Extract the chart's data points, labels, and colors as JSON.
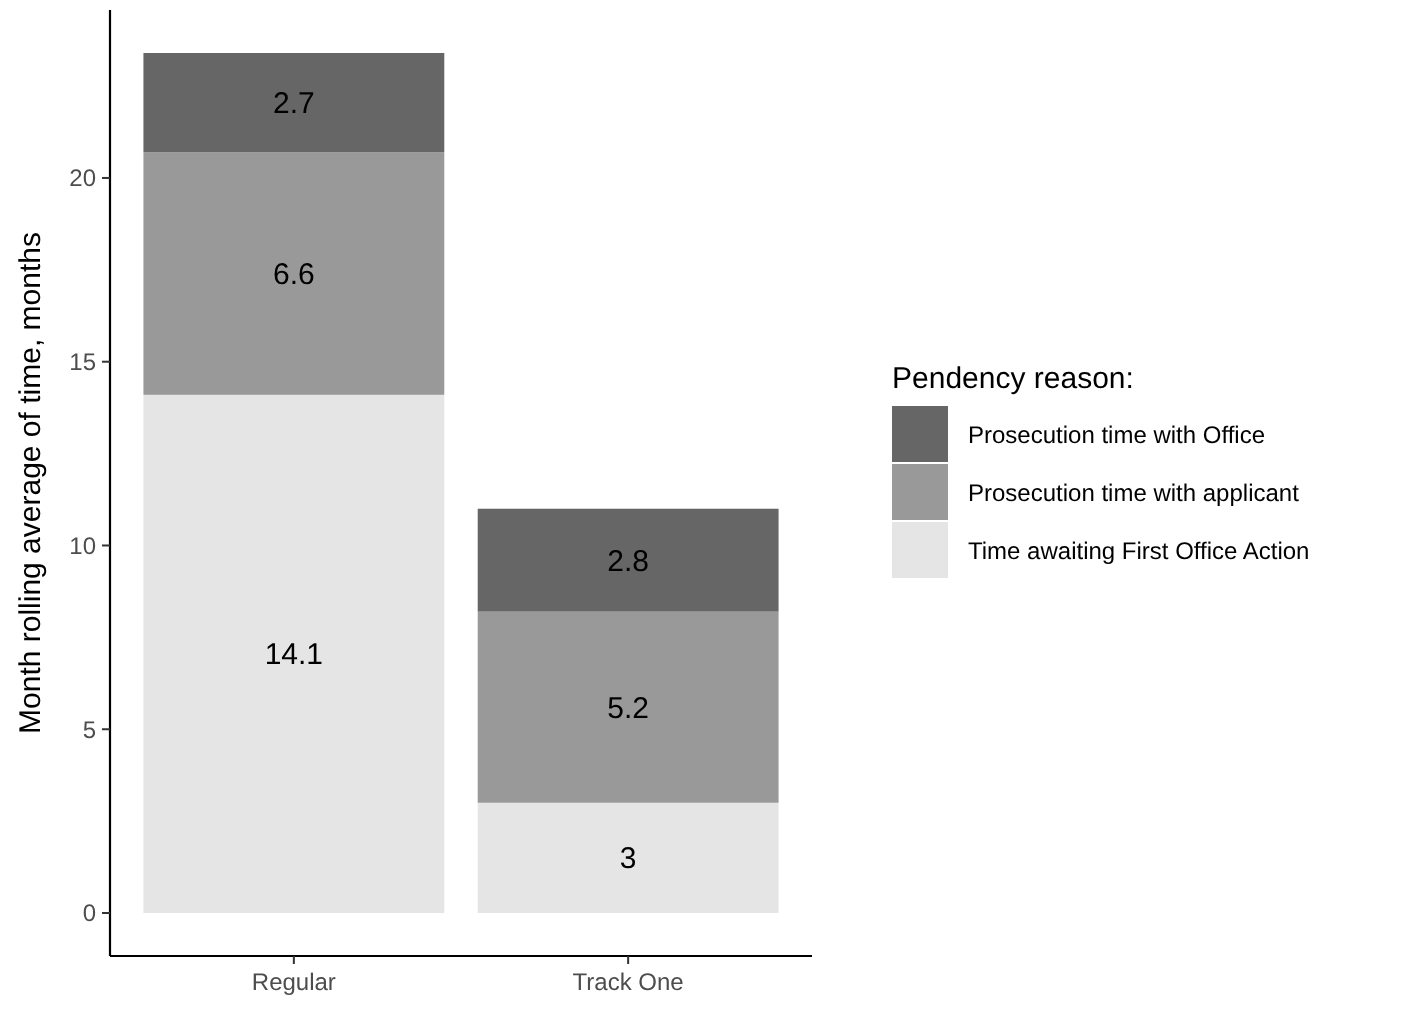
{
  "chart_data": {
    "type": "bar",
    "stacked": true,
    "ylabel": "Month rolling average of time, months",
    "legend_title": "Pendency reason:",
    "legend": "right",
    "data_labels": true,
    "grid": false,
    "categories": [
      "Regular",
      "Track One"
    ],
    "series": [
      {
        "name": "Time awaiting First Office Action",
        "color": "#e5e5e5",
        "values": [
          14.1,
          3
        ]
      },
      {
        "name": "Prosecution time with applicant",
        "color": "#999999",
        "values": [
          6.6,
          5.2
        ]
      },
      {
        "name": "Prosecution time with Office",
        "color": "#666666",
        "values": [
          2.7,
          2.8
        ]
      }
    ],
    "ylim": [
      -1.17,
      24.57
    ],
    "yticks": [
      0,
      5,
      10,
      15,
      20
    ]
  }
}
